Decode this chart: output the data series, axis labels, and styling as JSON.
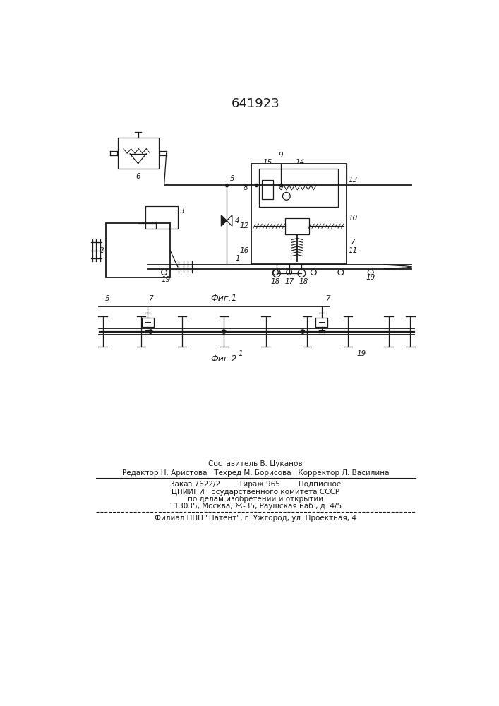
{
  "title_number": "641923",
  "title_fontsize": 13,
  "background_color": "#ffffff",
  "line_color": "#1a1a1a",
  "fig1_caption": "Фиг.1",
  "fig2_caption": "Фиг.2",
  "footer_lines": [
    "Составитель В. Цуканов",
    "Редактор Н. Аристова   Техред М. Борисова   Корректор Л. Василина",
    "Заказ 7622/2        Тираж 965        Подписное",
    "ЦНИИПИ Государственного комитета СССР",
    "по делам изобретений и открытий",
    "113035, Москва, Ж-35, Раушская наб., д. 4/5",
    "Филиал ППП \"Патент\", г. Ужгород, ул. Проектная, 4"
  ]
}
